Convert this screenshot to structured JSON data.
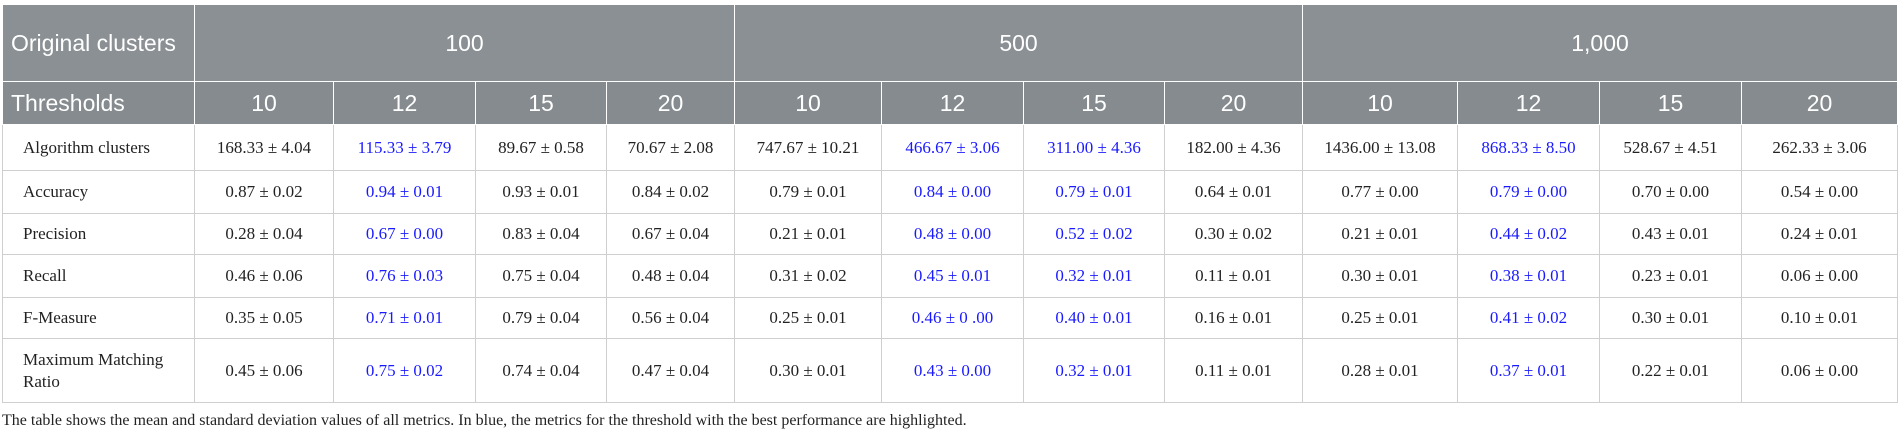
{
  "table": {
    "group_header": "Original clusters",
    "threshold_header": "Thresholds",
    "groups": [
      "100",
      "500",
      "1,000"
    ],
    "thresholds": [
      "10",
      "12",
      "15",
      "20",
      "10",
      "12",
      "15",
      "20",
      "10",
      "12",
      "15",
      "20"
    ],
    "highlight_color": "#1a1aff",
    "rows": [
      {
        "label": "Algorithm clusters",
        "cells": [
          "168.33 ± 4.04",
          {
            "text": "115.33 ± 3.79",
            "highlight": true
          },
          "89.67 ± 0.58",
          "70.67 ± 2.08",
          "747.67 ± 10.21",
          {
            "text": "466.67 ± 3.06",
            "highlight": true
          },
          {
            "text": "311.00 ± 4.36",
            "highlight": true
          },
          "182.00 ± 4.36",
          "1436.00 ± 13.08",
          {
            "text": "868.33 ± 8.50",
            "highlight": true
          },
          "528.67 ± 4.51",
          "262.33 ± 3.06"
        ]
      },
      {
        "label": "Accuracy",
        "cells": [
          "0.87 ± 0.02",
          {
            "text": "0.94 ± 0.01",
            "highlight": true
          },
          "0.93 ± 0.01",
          "0.84 ± 0.02",
          "0.79 ± 0.01",
          {
            "text": "0.84 ± 0.00",
            "highlight": true
          },
          {
            "text": "0.79 ± 0.01",
            "highlight": true
          },
          "0.64 ± 0.01",
          "0.77 ± 0.00",
          {
            "text": "0.79 ± 0.00",
            "highlight": true
          },
          "0.70 ± 0.00",
          "0.54 ± 0.00"
        ]
      },
      {
        "label": "Precision",
        "cells": [
          "0.28 ± 0.04",
          {
            "text": "0.67 ± 0.00",
            "highlight": true
          },
          "0.83 ± 0.04",
          "0.67 ± 0.04",
          "0.21 ± 0.01",
          {
            "text": "0.48 ± 0.00",
            "highlight": true
          },
          {
            "text": "0.52 ± 0.02",
            "highlight": true
          },
          "0.30 ± 0.02",
          "0.21 ± 0.01",
          {
            "text": "0.44 ± 0.02",
            "highlight": true
          },
          "0.43 ± 0.01",
          "0.24 ± 0.01"
        ]
      },
      {
        "label": "Recall",
        "cells": [
          "0.46 ± 0.06",
          {
            "text": "0.76 ± 0.03",
            "highlight": true
          },
          "0.75 ± 0.04",
          "0.48 ± 0.04",
          "0.31 ± 0.02",
          {
            "text": "0.45 ± 0.01",
            "highlight": true
          },
          {
            "text": "0.32 ± 0.01",
            "highlight": true
          },
          "0.11 ± 0.01",
          "0.30 ± 0.01",
          {
            "text": "0.38 ± 0.01",
            "highlight": true
          },
          "0.23 ± 0.01",
          "0.06 ± 0.00"
        ]
      },
      {
        "label": "F-Measure",
        "cells": [
          "0.35 ± 0.05",
          {
            "text": "0.71 ± 0.01",
            "highlight": true
          },
          "0.79 ± 0.04",
          "0.56 ± 0.04",
          "0.25 ± 0.01",
          {
            "text": "0.46 ± 0 .00",
            "highlight": true
          },
          {
            "text": "0.40 ± 0.01",
            "highlight": true
          },
          "0.16 ± 0.01",
          "0.25 ± 0.01",
          {
            "text": "0.41 ± 0.02",
            "highlight": true
          },
          "0.30 ± 0.01",
          "0.10 ± 0.01"
        ]
      },
      {
        "label": "Maximum Matching Ratio",
        "cells": [
          "0.45 ± 0.06",
          {
            "text": "0.75 ± 0.02",
            "highlight": true
          },
          "0.74 ± 0.04",
          "0.47 ± 0.04",
          "0.30 ± 0.01",
          {
            "text": "0.43 ± 0.00",
            "highlight": true
          },
          {
            "text": "0.32 ± 0.01",
            "highlight": true
          },
          "0.11 ± 0.01",
          "0.28 ± 0.01",
          {
            "text": "0.37 ± 0.01",
            "highlight": true
          },
          "0.22 ± 0.01",
          "0.06 ± 0.00"
        ]
      }
    ]
  },
  "footnote": "The table shows the mean and standard deviation values of all metrics. In blue, the metrics for the threshold with the best performance are highlighted."
}
